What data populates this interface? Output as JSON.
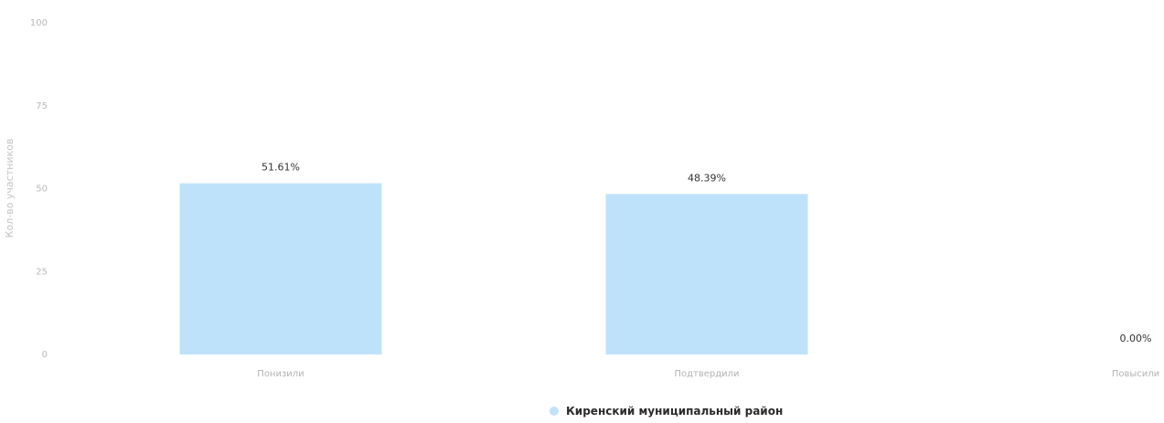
{
  "chart_data": {
    "type": "bar",
    "title": "",
    "xlabel": "",
    "ylabel": "Кол-во участников",
    "ylim": [
      0,
      100
    ],
    "yticks": [
      0,
      25,
      50,
      75,
      100
    ],
    "grid": false,
    "legend_position": "bottom-center",
    "categories": [
      "Понизили",
      "Подтвердили",
      "Повысили"
    ],
    "series": [
      {
        "name": "Киренский муниципальный район",
        "values": [
          51.61,
          48.39,
          0.0
        ],
        "labels": [
          "51.61%",
          "48.39%",
          "0.00%"
        ],
        "color": "#bfe2fb"
      }
    ]
  }
}
